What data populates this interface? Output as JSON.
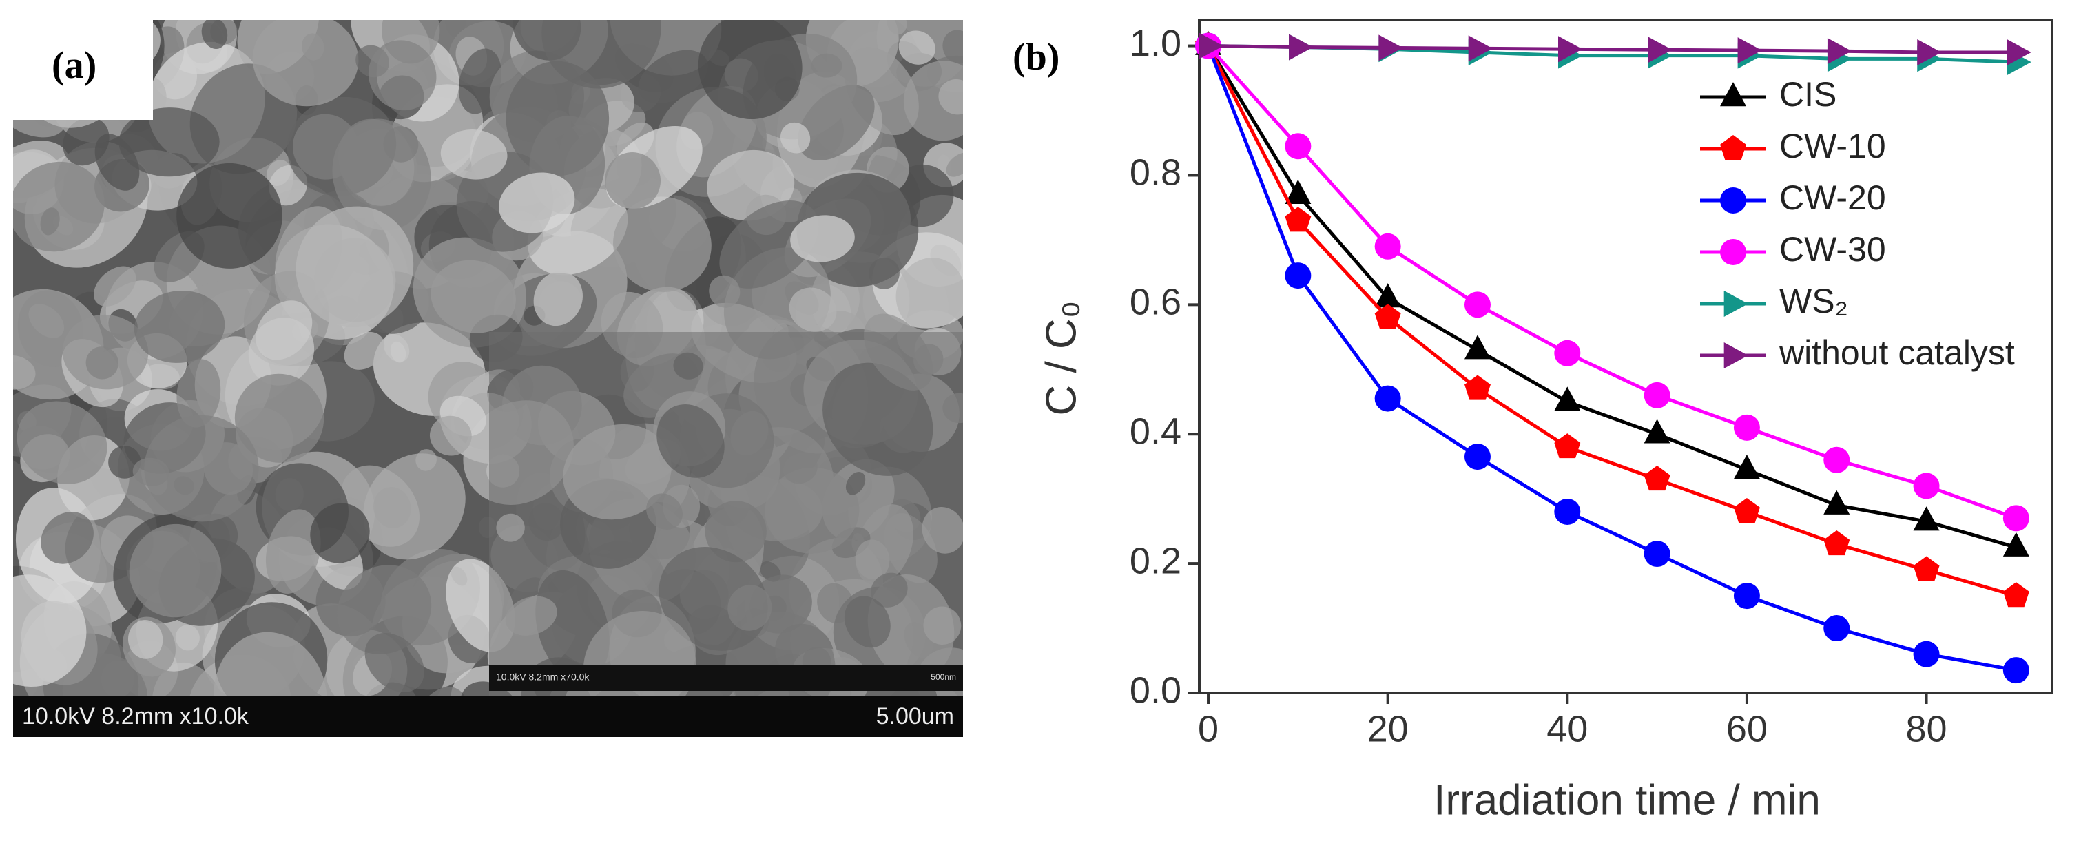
{
  "panel_a": {
    "label": "(a)",
    "info": "10.0kV 8.2mm x10.0k",
    "scale": "5.00um",
    "inset_info": "10.0kV 8.2mm x70.0k",
    "inset_scale": "500nm"
  },
  "chart_data": {
    "type": "line",
    "panel_label": "(b)",
    "x_label": "Irradiation time / min",
    "y_label": "C / C₀",
    "x": [
      0,
      10,
      20,
      30,
      40,
      50,
      60,
      70,
      80,
      90
    ],
    "xlim": [
      -1,
      94
    ],
    "ylim": [
      0,
      1.04
    ],
    "xticks": [
      0,
      20,
      40,
      60,
      80
    ],
    "yticks": [
      {
        "value": 0,
        "label": "0.0"
      },
      {
        "value": 0.2,
        "label": "0.2"
      },
      {
        "value": 0.4,
        "label": "0.4"
      },
      {
        "value": 0.6,
        "label": "0.6"
      },
      {
        "value": 0.8,
        "label": "0.8"
      },
      {
        "value": 1,
        "label": "1.0"
      }
    ],
    "legend": "upper right",
    "series": [
      {
        "name": "CIS",
        "color": "#000000",
        "marker": "triangle-up",
        "values": [
          1,
          0.77,
          0.61,
          0.53,
          0.45,
          0.4,
          0.345,
          0.29,
          0.265,
          0.225
        ]
      },
      {
        "name": "CW-10",
        "color": "#ff0000",
        "marker": "pentagon",
        "values": [
          1,
          0.73,
          0.58,
          0.47,
          0.38,
          0.33,
          0.28,
          0.23,
          0.19,
          0.15
        ]
      },
      {
        "name": "CW-20",
        "color": "#0000ff",
        "marker": "circle",
        "values": [
          1,
          0.645,
          0.455,
          0.365,
          0.28,
          0.215,
          0.15,
          0.1,
          0.06,
          0.035
        ]
      },
      {
        "name": "CW-30",
        "color": "#ff00ff",
        "marker": "circle",
        "values": [
          1,
          0.845,
          0.69,
          0.6,
          0.525,
          0.46,
          0.41,
          0.36,
          0.32,
          0.27
        ]
      },
      {
        "name": "WS₂",
        "color": "#13968a",
        "marker": "triangle-right",
        "values": [
          1,
          0.998,
          0.995,
          0.99,
          0.985,
          0.985,
          0.985,
          0.98,
          0.98,
          0.975
        ]
      },
      {
        "name": "without catalyst",
        "color": "#7f1a80",
        "marker": "triangle-right",
        "values": [
          1,
          0.998,
          0.997,
          0.996,
          0.995,
          0.994,
          0.993,
          0.992,
          0.99,
          0.99
        ]
      }
    ]
  }
}
